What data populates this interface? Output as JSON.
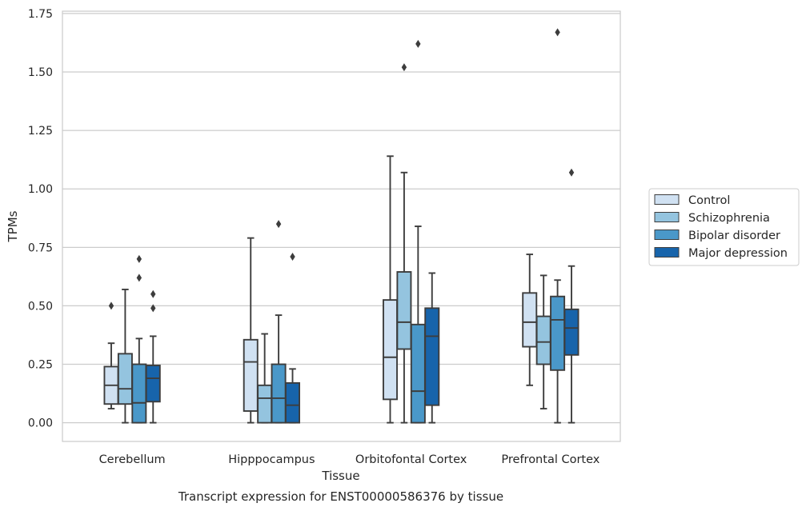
{
  "chart_data": {
    "type": "box",
    "title": "",
    "xlabel": "Tissue",
    "ylabel": "TPMs",
    "caption": "Transcript expression for ENST00000586376 by tissue",
    "ylim": [
      -0.08,
      1.76
    ],
    "yticks": [
      0.0,
      0.25,
      0.5,
      0.75,
      1.0,
      1.25,
      1.5,
      1.75
    ],
    "ytick_labels": [
      "0.00",
      "0.25",
      "0.50",
      "0.75",
      "1.00",
      "1.25",
      "1.50",
      "1.75"
    ],
    "grid": "horizontal",
    "legend_position": "right",
    "categories": [
      "Cerebellum",
      "Hipppocampus",
      "Orbitofontal Cortex",
      "Prefrontal Cortex"
    ],
    "series": [
      {
        "name": "Control",
        "color": "#d0e1f2",
        "boxes": [
          {
            "whislo": 0.06,
            "q1": 0.08,
            "med": 0.16,
            "q3": 0.24,
            "whishi": 0.34,
            "fliers": [
              0.5
            ]
          },
          {
            "whislo": 0.0,
            "q1": 0.05,
            "med": 0.26,
            "q3": 0.355,
            "whishi": 0.79,
            "fliers": []
          },
          {
            "whislo": 0.0,
            "q1": 0.1,
            "med": 0.28,
            "q3": 0.525,
            "whishi": 1.14,
            "fliers": []
          },
          {
            "whislo": 0.16,
            "q1": 0.325,
            "med": 0.43,
            "q3": 0.555,
            "whishi": 0.72,
            "fliers": []
          }
        ]
      },
      {
        "name": "Schizophrenia",
        "color": "#94c4df",
        "boxes": [
          {
            "whislo": 0.0,
            "q1": 0.08,
            "med": 0.145,
            "q3": 0.295,
            "whishi": 0.57,
            "fliers": []
          },
          {
            "whislo": 0.0,
            "q1": 0.0,
            "med": 0.105,
            "q3": 0.16,
            "whishi": 0.38,
            "fliers": []
          },
          {
            "whislo": 0.0,
            "q1": 0.315,
            "med": 0.43,
            "q3": 0.645,
            "whishi": 1.07,
            "fliers": [
              1.52
            ]
          },
          {
            "whislo": 0.06,
            "q1": 0.25,
            "med": 0.345,
            "q3": 0.455,
            "whishi": 0.63,
            "fliers": []
          }
        ]
      },
      {
        "name": "Bipolar disorder",
        "color": "#4a98c9",
        "boxes": [
          {
            "whislo": 0.0,
            "q1": 0.0,
            "med": 0.085,
            "q3": 0.25,
            "whishi": 0.36,
            "fliers": [
              0.62,
              0.7
            ]
          },
          {
            "whislo": 0.0,
            "q1": 0.0,
            "med": 0.105,
            "q3": 0.25,
            "whishi": 0.46,
            "fliers": [
              0.85
            ]
          },
          {
            "whislo": 0.0,
            "q1": 0.0,
            "med": 0.135,
            "q3": 0.42,
            "whishi": 0.84,
            "fliers": [
              1.62
            ]
          },
          {
            "whislo": 0.0,
            "q1": 0.225,
            "med": 0.44,
            "q3": 0.54,
            "whishi": 0.61,
            "fliers": [
              1.67
            ]
          }
        ]
      },
      {
        "name": "Major depression",
        "color": "#1764ab",
        "boxes": [
          {
            "whislo": 0.0,
            "q1": 0.09,
            "med": 0.19,
            "q3": 0.245,
            "whishi": 0.37,
            "fliers": [
              0.49,
              0.55
            ]
          },
          {
            "whislo": 0.0,
            "q1": 0.0,
            "med": 0.075,
            "q3": 0.17,
            "whishi": 0.23,
            "fliers": [
              0.71
            ]
          },
          {
            "whislo": 0.0,
            "q1": 0.075,
            "med": 0.37,
            "q3": 0.49,
            "whishi": 0.64,
            "fliers": []
          },
          {
            "whislo": 0.0,
            "q1": 0.29,
            "med": 0.405,
            "q3": 0.485,
            "whishi": 0.67,
            "fliers": [
              1.07
            ]
          }
        ]
      }
    ]
  }
}
